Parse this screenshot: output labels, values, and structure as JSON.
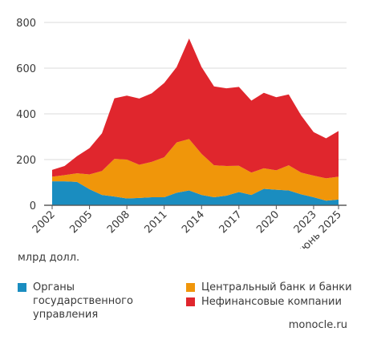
{
  "chart_data": {
    "type": "area",
    "stacked": true,
    "x": [
      "2002",
      "2003",
      "2004",
      "2005",
      "2006",
      "2007",
      "2008",
      "2009",
      "2010",
      "2011",
      "2012",
      "2013",
      "2014",
      "2015",
      "2016",
      "2017",
      "2018",
      "2019",
      "2020",
      "2021",
      "2022",
      "2023",
      "2024",
      "июнь 2025"
    ],
    "x_tick_labels": [
      "2002",
      "2005",
      "2008",
      "2011",
      "2014",
      "2017",
      "2020",
      "2023",
      "июнь 2025"
    ],
    "series": [
      {
        "name": "Органы государственного управления",
        "color": "#1a8dc0",
        "values": [
          105,
          105,
          102,
          70,
          45,
          38,
          30,
          32,
          35,
          35,
          55,
          65,
          45,
          35,
          42,
          58,
          45,
          72,
          68,
          65,
          48,
          35,
          20,
          25
        ]
      },
      {
        "name": "Центральный банк и банки",
        "color": "#f0960a",
        "values": [
          20,
          27,
          38,
          65,
          105,
          165,
          170,
          145,
          155,
          175,
          220,
          225,
          180,
          140,
          130,
          115,
          98,
          90,
          85,
          110,
          95,
          95,
          98,
          100
        ]
      },
      {
        "name": "Нефинансовые компании",
        "color": "#e0262d",
        "values": [
          30,
          40,
          75,
          115,
          165,
          265,
          280,
          290,
          300,
          325,
          330,
          440,
          380,
          345,
          340,
          345,
          315,
          330,
          320,
          310,
          250,
          190,
          175,
          200
        ]
      }
    ],
    "ylim": [
      0,
      800
    ],
    "y_ticks": [
      0,
      200,
      400,
      600,
      800
    ],
    "ylabel": "млрд долл.",
    "grid": "horizontal",
    "legend": "bottom"
  },
  "legend": [
    {
      "label": "Органы государственного управления",
      "color": "#1a8dc0"
    },
    {
      "label": "Центральный банк и банки",
      "color": "#f0960a"
    },
    {
      "label": "Нефинансовые компании",
      "color": "#e0262d"
    }
  ],
  "source": "monocle.ru"
}
